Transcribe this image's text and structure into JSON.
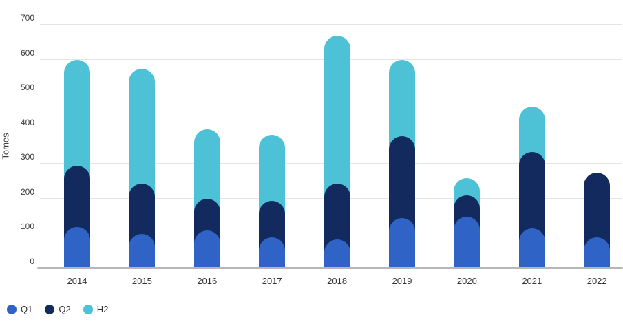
{
  "chart_data": {
    "type": "bar",
    "stacked": true,
    "bar_shape": "rounded-top",
    "title": "",
    "ylabel": "Tomes",
    "xlabel": "",
    "ylim": [
      0,
      700
    ],
    "yticks": [
      0,
      100,
      200,
      300,
      400,
      500,
      600,
      700
    ],
    "grid": true,
    "legend_position": "bottom-left",
    "categories": [
      "2014",
      "2015",
      "2016",
      "2017",
      "2018",
      "2019",
      "2020",
      "2021",
      "2022"
    ],
    "series": [
      {
        "name": "Q1",
        "color": "#2f64c6",
        "values": [
          115,
          95,
          105,
          85,
          80,
          140,
          145,
          110,
          85
        ]
      },
      {
        "name": "Q2",
        "color": "#132a5e",
        "values": [
          175,
          145,
          90,
          105,
          160,
          235,
          60,
          220,
          185
        ]
      },
      {
        "name": "H2",
        "color": "#4dc2d7",
        "values": [
          305,
          330,
          200,
          190,
          425,
          220,
          50,
          130,
          0
        ]
      }
    ]
  },
  "colors": {
    "background": "#ffffff",
    "gridline": "#e4e4e4",
    "axis_line": "#b6b6b6",
    "tick_text": "#3d3d3d",
    "category_text": "#333333"
  }
}
